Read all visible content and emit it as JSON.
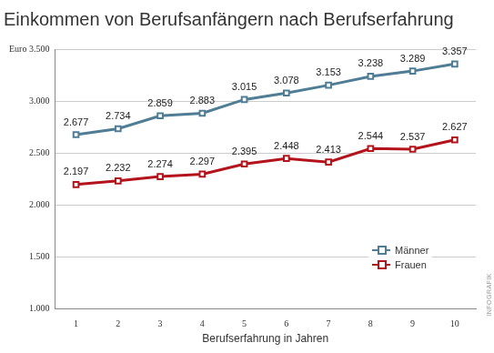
{
  "chart_data": {
    "type": "line",
    "title": "Einkommen von Berufsanfängern nach Berufserfahrung",
    "x_label": "Berufserfahrung in Jahren",
    "categories": [
      "1",
      "2",
      "3",
      "4",
      "5",
      "6",
      "7",
      "8",
      "9",
      "10"
    ],
    "series": [
      {
        "name": "Männer",
        "color": "#4f7d95",
        "values": [
          2677,
          2734,
          2859,
          2883,
          3015,
          3078,
          3153,
          3238,
          3289,
          3357
        ],
        "value_labels": [
          "2.677",
          "2.734",
          "2.859",
          "2.883",
          "3.015",
          "3.078",
          "3.153",
          "3.238",
          "3.289",
          "3.357"
        ]
      },
      {
        "name": "Frauen",
        "color": "#b3131b",
        "values": [
          2197,
          2232,
          2274,
          2297,
          2395,
          2448,
          2413,
          2544,
          2537,
          2627
        ],
        "value_labels": [
          "2.197",
          "2.232",
          "2.274",
          "2.297",
          "2.395",
          "2.448",
          "2.413",
          "2.544",
          "2.537",
          "2.627"
        ]
      }
    ],
    "ylim": [
      1000,
      3500
    ],
    "yticks": [
      {
        "value": 1000,
        "label": "1.000"
      },
      {
        "value": 1500,
        "label": "1.500"
      },
      {
        "value": 2000,
        "label": "2.000"
      },
      {
        "value": 2500,
        "label": "2.500"
      },
      {
        "value": 3000,
        "label": "3.000"
      },
      {
        "value": 3500,
        "label": "Euro 3.500"
      }
    ],
    "grid": true,
    "legend": "lower right",
    "data_labels": true,
    "marker": "square",
    "annotations": [
      "INFOGRAFIK"
    ]
  }
}
